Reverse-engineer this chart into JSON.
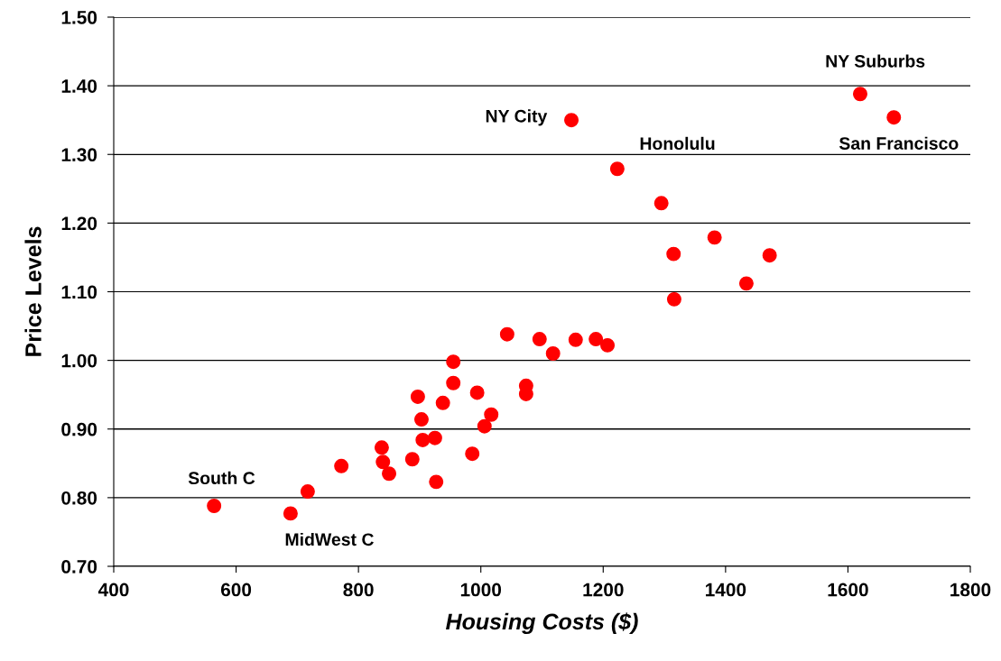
{
  "chart_data": {
    "type": "scatter",
    "xlabel": "Housing Costs ($)",
    "ylabel": "Price Levels",
    "x": [
      564,
      689,
      717,
      772,
      838,
      840,
      850,
      888,
      897,
      903,
      905,
      925,
      927,
      938,
      955,
      955,
      986,
      994,
      1006,
      1017,
      1043,
      1074,
      1074,
      1096,
      1118,
      1155,
      1148,
      1188,
      1207,
      1223,
      1295,
      1315,
      1316,
      1382,
      1434,
      1472,
      1620,
      1675
    ],
    "series": [
      {
        "color": "#ff0000",
        "values": [
          0.788,
          0.777,
          0.809,
          0.846,
          0.873,
          0.852,
          0.835,
          0.856,
          0.947,
          0.914,
          0.884,
          0.887,
          0.823,
          0.938,
          0.998,
          0.967,
          0.864,
          0.953,
          0.904,
          0.921,
          1.038,
          0.963,
          0.951,
          1.031,
          1.01,
          1.03,
          1.35,
          1.031,
          1.022,
          1.279,
          1.229,
          1.155,
          1.089,
          1.179,
          1.112,
          1.153,
          1.388,
          1.354
        ]
      }
    ],
    "marker": "circle",
    "grid": "y",
    "xlim": [
      400,
      1800
    ],
    "xticks": [
      400,
      600,
      800,
      1000,
      1200,
      1400,
      1600,
      1800
    ],
    "ylim": [
      0.7,
      1.5
    ],
    "yticks": [
      {
        "value": 0.7,
        "label": "0.70"
      },
      {
        "value": 0.8,
        "label": "0.80"
      },
      {
        "value": 0.9,
        "label": "0.90"
      },
      {
        "value": 1.0,
        "label": "1.00"
      },
      {
        "value": 1.1,
        "label": "1.10"
      },
      {
        "value": 1.2,
        "label": "1.20"
      },
      {
        "value": 1.3,
        "label": "1.30"
      },
      {
        "value": 1.4,
        "label": "1.40"
      },
      {
        "value": 1.5,
        "label": "1.50"
      }
    ],
    "annotations": [
      {
        "text": "South C",
        "x": 564,
        "y": 0.788
      },
      {
        "text": "MidWest C",
        "x": 689,
        "y": 0.777
      },
      {
        "text": "NY City",
        "x": 1148,
        "y": 1.35
      },
      {
        "text": "Honolulu",
        "x": 1223,
        "y": 1.279
      },
      {
        "text": "NY Suburbs",
        "x": 1620,
        "y": 1.388
      },
      {
        "text": "San Francisco",
        "x": 1675,
        "y": 1.354
      }
    ]
  }
}
